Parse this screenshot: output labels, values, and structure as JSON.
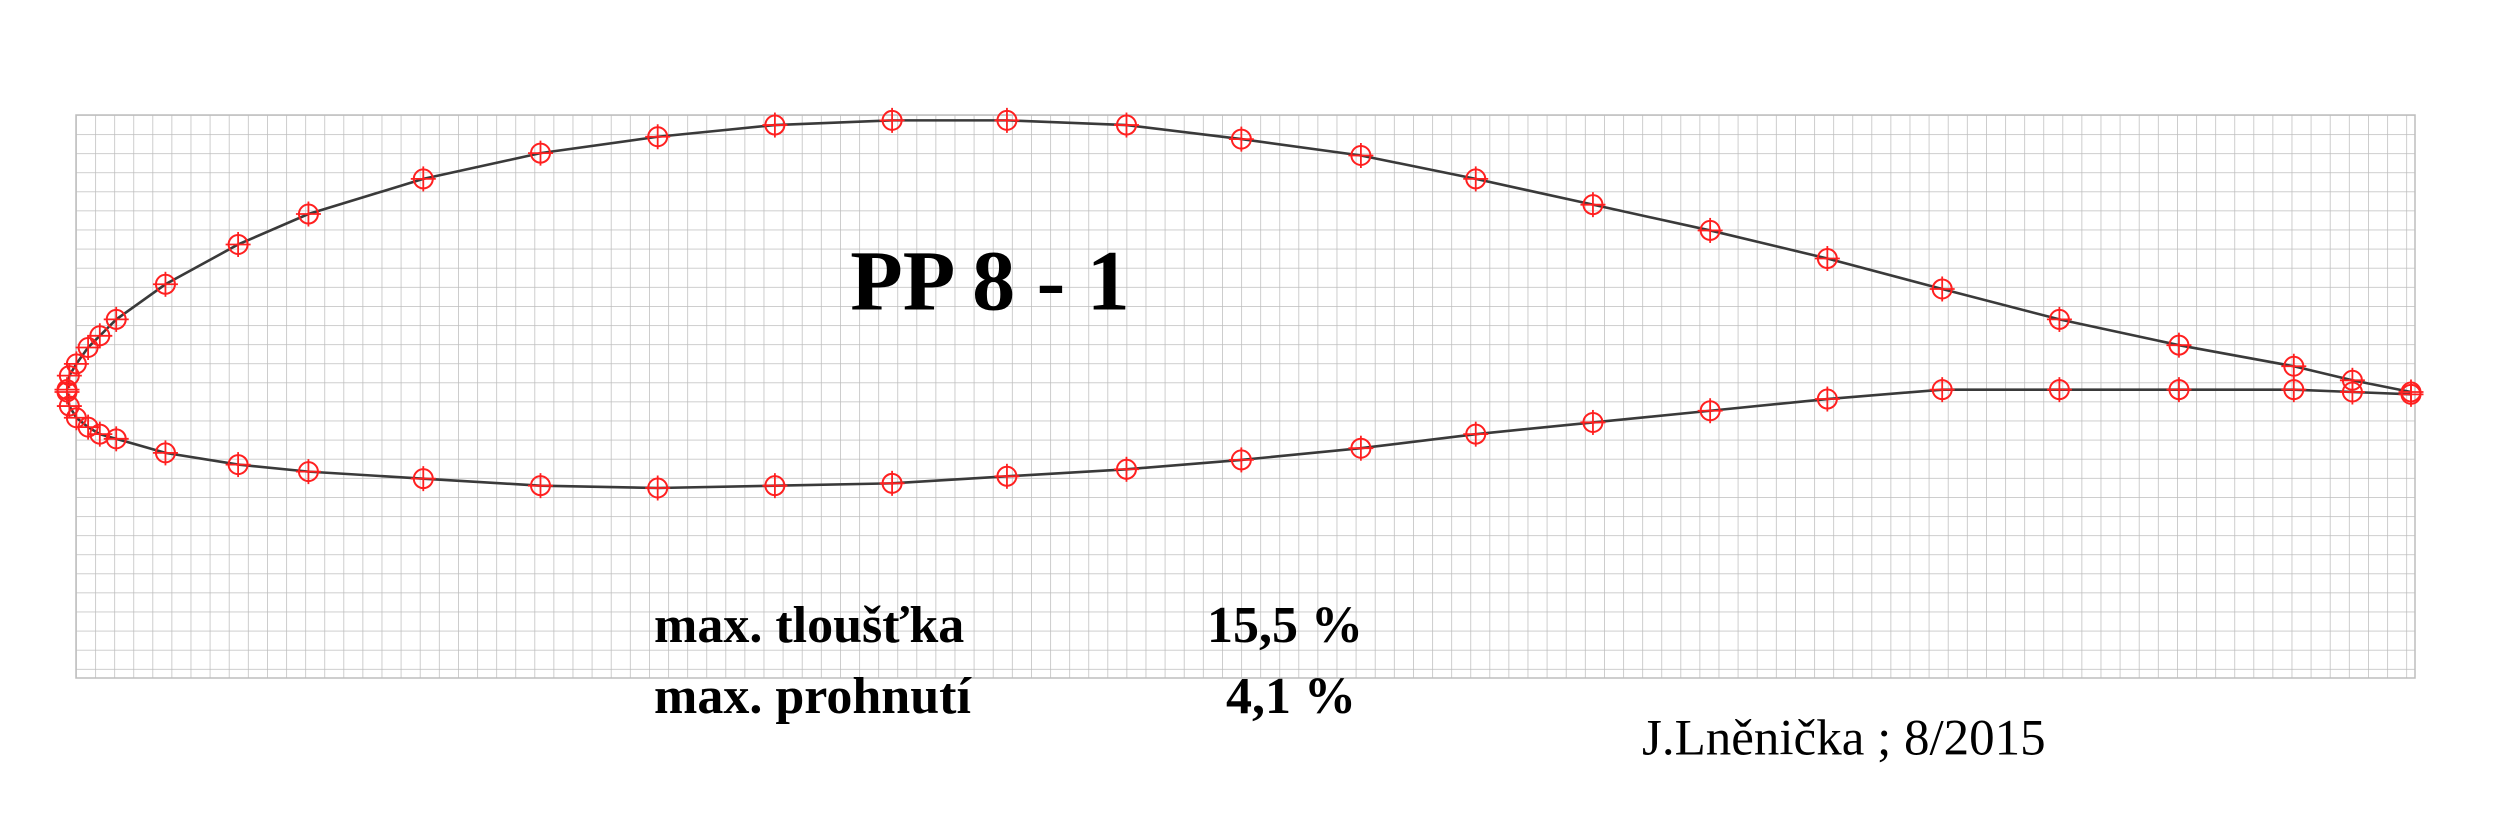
{
  "chart_data": {
    "type": "airfoil",
    "title": "PP  8 - 1",
    "annotations": [
      "max. tloušťka",
      "15,5 %",
      "max. prohnutí",
      "4,1 %",
      "J.Lněnička ; 8/2015"
    ],
    "x": [
      0,
      0.1,
      0.4,
      0.9,
      1.4,
      2.1,
      4.2,
      7.3,
      10.3,
      15.2,
      20.2,
      25.2,
      30.2,
      35.2,
      40.1,
      45.2,
      50.1,
      55.2,
      60.1,
      65.1,
      70.1,
      75.1,
      80.0,
      85.0,
      90.1,
      95.0,
      97.5,
      100
    ],
    "series": [
      {
        "color": "#ff2020",
        "values": [
          0.1,
          0.7,
          1.2,
          1.9,
          2.4,
          3.1,
          4.6,
          6.3,
          7.6,
          9.1,
          10.2,
          10.9,
          11.4,
          11.6,
          11.6,
          11.4,
          10.8,
          10.1,
          9.1,
          8.0,
          6.9,
          5.7,
          4.4,
          3.1,
          2.0,
          1.1,
          0.5,
          0
        ]
      },
      {
        "color": "#ff2020",
        "values": [
          0,
          -0.6,
          -1.1,
          -1.5,
          -1.8,
          -2.0,
          -2.6,
          -3.1,
          -3.4,
          -3.7,
          -4.0,
          -4.1,
          -4.0,
          -3.9,
          -3.6,
          -3.3,
          -2.9,
          -2.4,
          -1.8,
          -1.3,
          -0.8,
          -0.3,
          0.1,
          0.1,
          0.1,
          0.1,
          0,
          -0.1
        ]
      }
    ],
    "line_color": "#3a3a3a",
    "xlim": [
      0,
      100
    ],
    "ylim": [
      -12,
      12
    ],
    "grid": true
  }
}
